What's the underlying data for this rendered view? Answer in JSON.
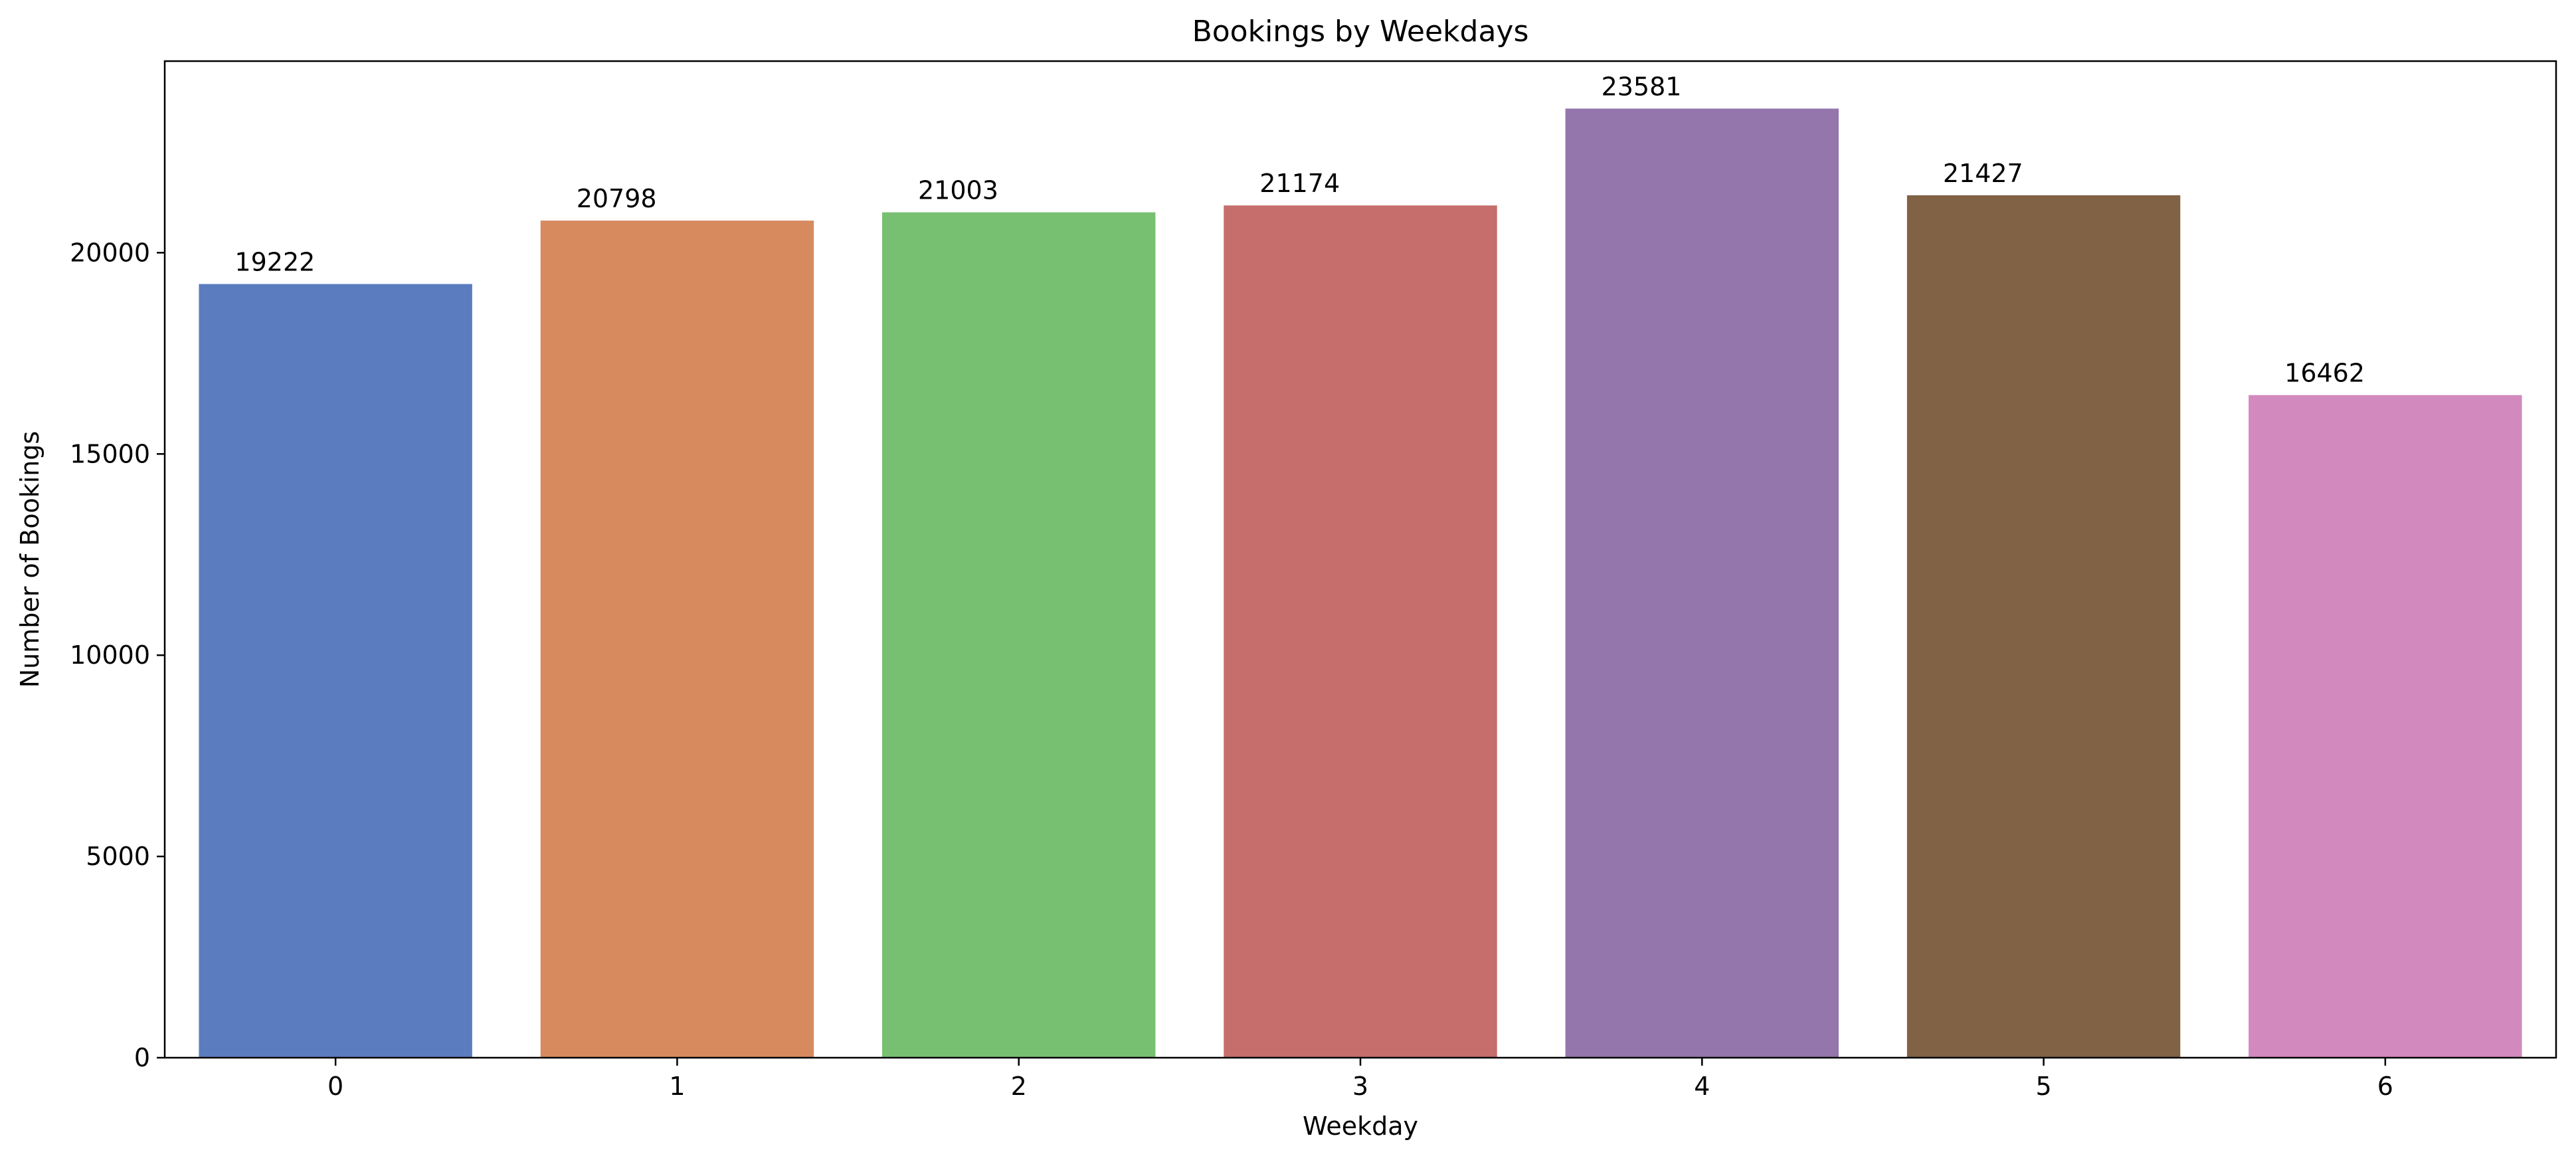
{
  "chart_data": {
    "type": "bar",
    "title": "Bookings by Weekdays",
    "xlabel": "Weekday",
    "ylabel": "Number of Bookings",
    "categories": [
      "0",
      "1",
      "2",
      "3",
      "4",
      "5",
      "6"
    ],
    "values": [
      19222,
      20798,
      21003,
      21174,
      23581,
      21427,
      16462
    ],
    "data_labels": [
      "19222",
      "20798",
      "21003",
      "21174",
      "23581",
      "21427",
      "16462"
    ],
    "ylim": [
      0,
      24760
    ],
    "yticks": [
      0,
      5000,
      10000,
      15000,
      20000
    ],
    "ytick_labels": [
      "0",
      "5000",
      "10000",
      "15000",
      "20000"
    ],
    "colors": [
      "#5b7dbf",
      "#d88a5f",
      "#77c071",
      "#c56e6c",
      "#9476ad",
      "#816245",
      "#d289bd"
    ],
    "grid": false,
    "legend": "none"
  }
}
